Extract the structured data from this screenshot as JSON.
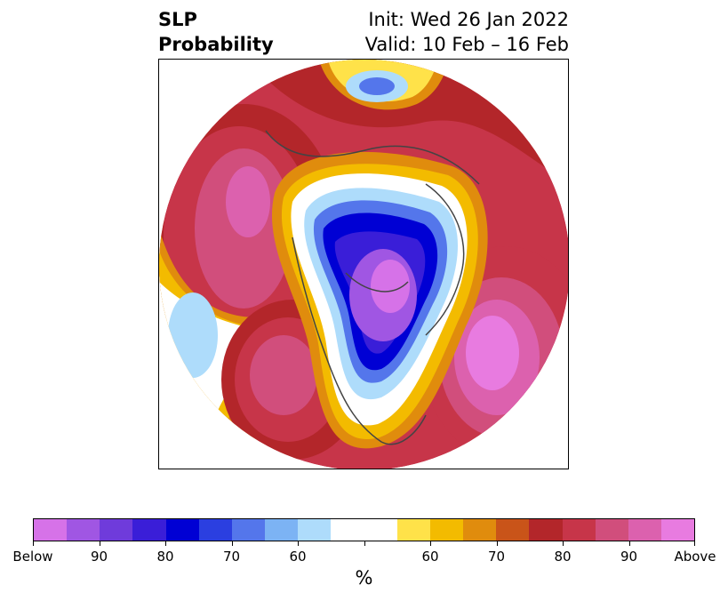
{
  "title": {
    "left_line1": "SLP",
    "left_line2": "Probability",
    "right_line1": "Init: Wed 26 Jan 2022",
    "right_line2": "Valid: 10 Feb – 16 Feb"
  },
  "colorbar": {
    "unit": "%",
    "colors": [
      "#d672e8",
      "#a056e3",
      "#6f3bdb",
      "#3a1ed8",
      "#0000d4",
      "#2b3fe0",
      "#5476eb",
      "#7cb3f4",
      "#aedcfb",
      "#ffffff",
      "#ffffff",
      "#ffe249",
      "#f3bb00",
      "#e08c0d",
      "#c95419",
      "#b3262a",
      "#c73549",
      "#d14e7c",
      "#dc61ae",
      "#e87be0"
    ],
    "tick_labels": [
      "Below",
      "90",
      "80",
      "70",
      "60",
      "",
      "60",
      "70",
      "80",
      "90",
      "Above"
    ]
  },
  "map": {
    "description_colors": {
      "below_strong": "#9a4ee0",
      "below_mid": "#0000d4",
      "below_weak": "#aedcfb",
      "above_weak": "#ffe249",
      "above_mid": "#c95419",
      "above_strong": "#e87be0"
    }
  }
}
